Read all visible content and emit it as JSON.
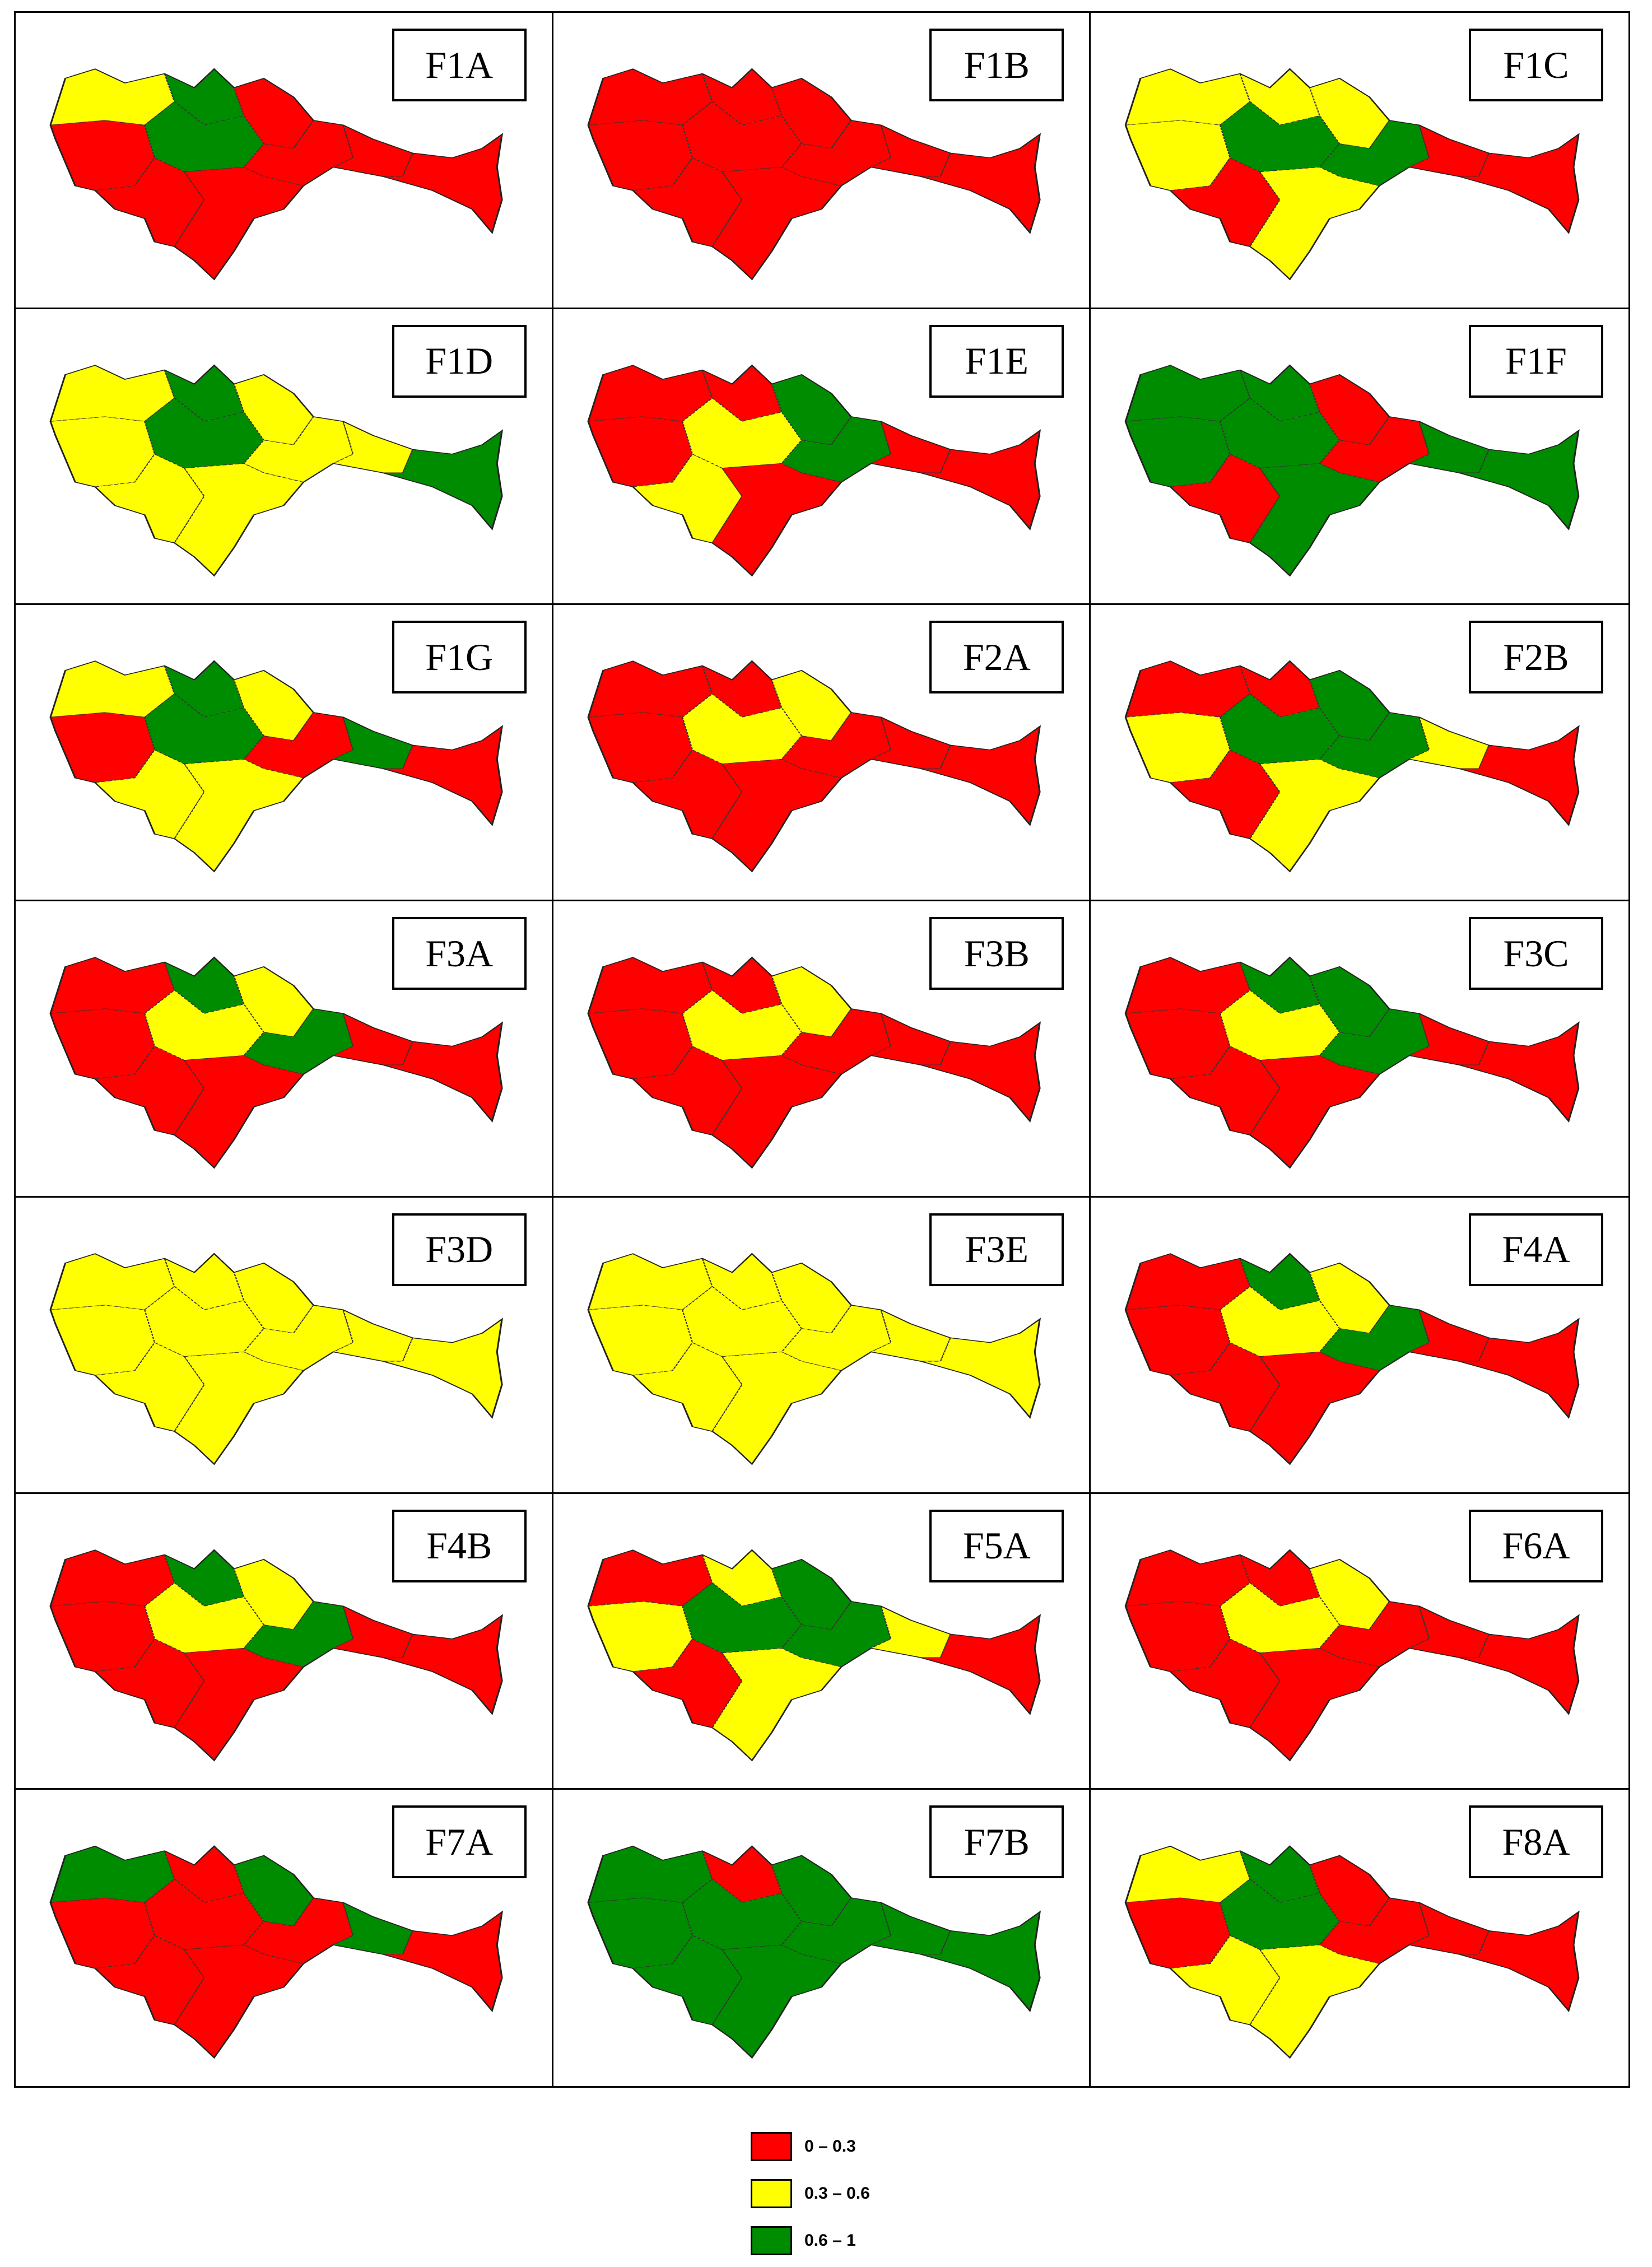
{
  "legend": {
    "items": [
      {
        "label": "0 – 0.3",
        "color": "#ff0000"
      },
      {
        "label": "0.3 – 0.6",
        "color": "#ffff00"
      },
      {
        "label": "0.6 – 1",
        "color": "#008c00"
      }
    ]
  },
  "panels": [
    {
      "label": "F1A",
      "pattern": "mixed-red-west-green-yellow"
    },
    {
      "label": "F1B",
      "pattern": "all-red"
    },
    {
      "label": "F1C",
      "pattern": "mixed-yellow-north-green-center"
    },
    {
      "label": "F1D",
      "pattern": "mostly-green-yellow"
    },
    {
      "label": "F1E",
      "pattern": "mixed-red-yellow-green-center"
    },
    {
      "label": "F1F",
      "pattern": "mostly-green-red-center"
    },
    {
      "label": "F1G",
      "pattern": "mixed-yellow-green-red-east"
    },
    {
      "label": "F2A",
      "pattern": "mostly-red-yellow-center"
    },
    {
      "label": "F2B",
      "pattern": "mixed-red-green-center"
    },
    {
      "label": "F3A",
      "pattern": "mostly-red-yellow-green-center"
    },
    {
      "label": "F3B",
      "pattern": "mostly-red-yellow-center"
    },
    {
      "label": "F3C",
      "pattern": "mostly-red-green-center"
    },
    {
      "label": "F3D",
      "pattern": "all-yellow"
    },
    {
      "label": "F3E",
      "pattern": "all-yellow"
    },
    {
      "label": "F4A",
      "pattern": "mostly-red-yellow-green-center"
    },
    {
      "label": "F4B",
      "pattern": "mostly-red-yellow-green-center"
    },
    {
      "label": "F5A",
      "pattern": "mixed-yellow-green-red"
    },
    {
      "label": "F6A",
      "pattern": "mostly-red-yellow-center"
    },
    {
      "label": "F7A",
      "pattern": "mostly-red-green-edges"
    },
    {
      "label": "F7B",
      "pattern": "mostly-green-red-northwest"
    },
    {
      "label": "F8A",
      "pattern": "mixed-green-red-yellow"
    }
  ]
}
